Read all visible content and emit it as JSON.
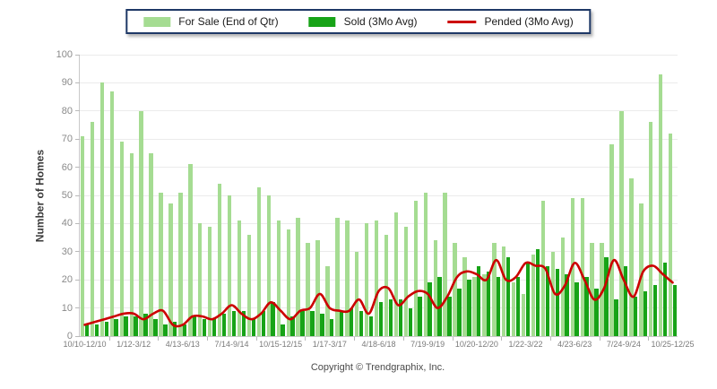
{
  "page": {
    "copyright": "Copyright © Trendgraphix, Inc."
  },
  "legend": {
    "border_color": "#1e3866",
    "items": [
      {
        "label": "For Sale (End of Qtr)",
        "color": "#a5dc92",
        "type": "bar"
      },
      {
        "label": "Sold (3Mo Avg)",
        "color": "#17a317",
        "type": "bar"
      },
      {
        "label": "Pended (3Mo Avg)",
        "color": "#cc0000",
        "type": "line"
      }
    ]
  },
  "chart_data": {
    "type": "combo",
    "title": "",
    "xlabel": "",
    "ylabel": "Number of Homes",
    "ylim": [
      0,
      100
    ],
    "y_ticks": [
      0,
      10,
      20,
      30,
      40,
      50,
      60,
      70,
      80,
      90,
      100
    ],
    "grid": true,
    "legend_position": "top-center",
    "quarters": 61,
    "x_tick_positions": [
      0,
      5,
      10,
      15,
      20,
      25,
      30,
      35,
      40,
      45,
      50,
      55,
      60
    ],
    "x_tick_labels": [
      "10/10-12/10",
      "1/12-3/12",
      "4/13-6/13",
      "7/14-9/14",
      "10/15-12/15",
      "1/17-3/17",
      "4/18-6/18",
      "7/19-9/19",
      "10/20-12/20",
      "1/22-3/22",
      "4/23-6/23",
      "7/24-9/24",
      "10/25-12/25"
    ],
    "series": [
      {
        "name": "For Sale (End of Qtr)",
        "type": "bar",
        "color": "#a5dc92",
        "values": [
          71,
          76,
          90,
          87,
          69,
          65,
          80,
          65,
          51,
          47,
          51,
          61,
          40,
          39,
          54,
          50,
          41,
          36,
          53,
          50,
          41,
          38,
          42,
          33,
          34,
          25,
          42,
          41,
          30,
          40,
          41,
          36,
          44,
          39,
          48,
          51,
          34,
          51,
          33,
          28,
          21,
          22,
          33,
          32,
          19,
          15,
          29,
          48,
          30,
          35,
          49,
          49,
          33,
          33,
          68,
          80,
          56,
          47,
          76,
          93,
          72
        ]
      },
      {
        "name": "Sold (3Mo Avg)",
        "type": "bar",
        "color": "#17a317",
        "values": [
          4,
          4,
          5,
          6,
          7,
          7,
          8,
          6,
          4,
          5,
          4,
          7,
          6,
          6,
          8,
          9,
          9,
          6,
          9,
          12,
          4,
          7,
          9,
          9,
          8,
          6,
          9,
          10,
          9,
          7,
          12,
          13,
          13,
          10,
          14,
          19,
          21,
          14,
          17,
          20,
          25,
          23,
          21,
          28,
          21,
          26,
          31,
          25,
          24,
          22,
          19,
          21,
          17,
          28,
          13,
          25,
          14,
          16,
          18,
          26,
          18
        ]
      },
      {
        "name": "Pended (3Mo Avg)",
        "type": "line",
        "color": "#cc0000",
        "values": [
          4,
          5,
          6,
          7,
          8,
          8,
          6,
          8,
          9,
          4,
          4,
          7,
          7,
          6,
          8,
          11,
          8,
          6,
          8,
          12,
          9,
          6,
          9,
          10,
          15,
          10,
          9,
          9,
          13,
          8,
          16,
          17,
          11,
          14,
          16,
          15,
          10,
          14,
          21,
          23,
          22,
          20,
          27,
          20,
          21,
          26,
          25,
          24,
          15,
          18,
          26,
          20,
          13,
          17,
          27,
          20,
          14,
          23,
          25,
          22,
          19
        ]
      }
    ]
  }
}
